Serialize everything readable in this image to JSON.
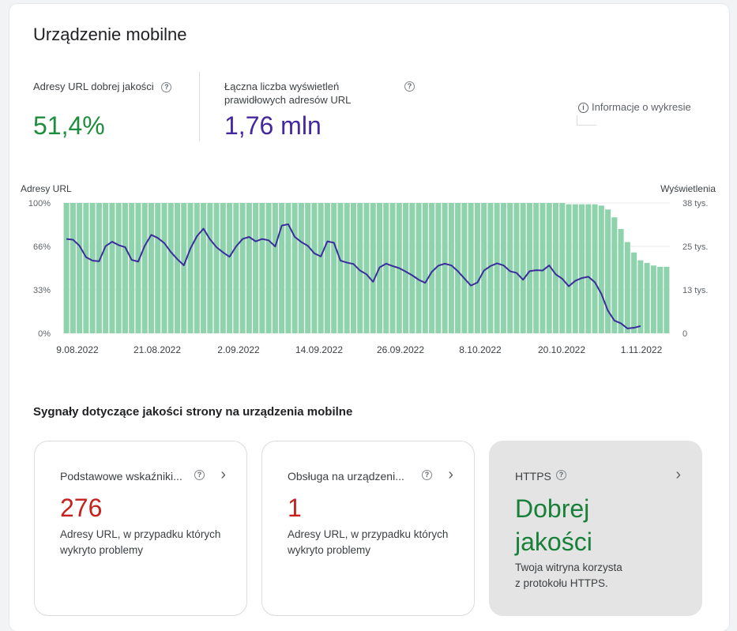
{
  "header": {
    "title": "Urządzenie mobilne",
    "info_label": "Informacje o wykresie"
  },
  "metrics": [
    {
      "label_line1": "Adresy URL dobrej jakości",
      "label_line2": "",
      "value": "51,4%",
      "color": "#1e8e3e"
    },
    {
      "label_line1": "Łączna liczba wyświetleń",
      "label_line2": "prawidłowych adresów URL",
      "value": "1,76 mln",
      "color": "#4527a0"
    }
  ],
  "chart_data": {
    "type": "bar+line",
    "left_axis_label": "Adresy URL",
    "right_axis_label": "Wyświetlenia",
    "left_ticks": [
      "100%",
      "66%",
      "33%",
      "0%"
    ],
    "right_ticks": [
      "38 tys.",
      "25 tys.",
      "13 tys.",
      "0"
    ],
    "x_labels": [
      "9.08.2022",
      "21.08.2022",
      "2.09.2022",
      "14.09.2022",
      "26.09.2022",
      "8.10.2022",
      "20.10.2022",
      "1.11.2022"
    ],
    "bar_series_name": "Adresy URL dobrej jakości",
    "bar_color": "#8fd3ad",
    "line_color": "#3c2d9e",
    "ylim_left": [
      0,
      100
    ],
    "ylim_right": [
      0,
      38000
    ],
    "bars": [
      100,
      100,
      100,
      100,
      100,
      100,
      100,
      100,
      100,
      100,
      100,
      100,
      100,
      100,
      100,
      100,
      100,
      100,
      100,
      100,
      100,
      100,
      100,
      100,
      100,
      100,
      100,
      100,
      100,
      100,
      100,
      100,
      100,
      100,
      100,
      100,
      100,
      100,
      100,
      100,
      100,
      100,
      100,
      100,
      100,
      100,
      100,
      100,
      100,
      100,
      100,
      100,
      100,
      100,
      100,
      100,
      100,
      100,
      100,
      100,
      100,
      100,
      100,
      100,
      100,
      100,
      100,
      100,
      100,
      100,
      100,
      100,
      100,
      100,
      100,
      100,
      100,
      99,
      99,
      99,
      99,
      99,
      98,
      95,
      89,
      80,
      70,
      62,
      56,
      54,
      52,
      51,
      51
    ],
    "line": [
      27500,
      27300,
      25500,
      22200,
      21200,
      21000,
      25400,
      26700,
      25700,
      25100,
      21400,
      20900,
      25500,
      28700,
      27800,
      26300,
      23700,
      21600,
      19800,
      24700,
      28300,
      30500,
      27400,
      25100,
      23600,
      22300,
      25300,
      27500,
      28100,
      26800,
      27500,
      27100,
      25300,
      31400,
      31800,
      28100,
      26600,
      25500,
      23300,
      22400,
      26800,
      26400,
      21200,
      20600,
      20200,
      18300,
      17200,
      15000,
      19200,
      20300,
      19600,
      19000,
      18000,
      16900,
      15600,
      14700,
      17900,
      19700,
      20300,
      19800,
      18100,
      16000,
      13900,
      14800,
      18300,
      19600,
      20400,
      19800,
      18100,
      17600,
      15600,
      18100,
      18400,
      18300,
      19800,
      17200,
      15900,
      13700,
      15300,
      16100,
      16500,
      14900,
      11500,
      6600,
      3700,
      2900,
      1400,
      1600,
      2100
    ]
  },
  "signals": {
    "title": "Sygnały dotyczące jakości strony na urządzenia mobilne",
    "cards": [
      {
        "label": "Podstawowe wskaźniki...",
        "value": "276",
        "desc_line1": "Adresy URL, w przypadku których",
        "desc_line2": "wykryto problemy"
      },
      {
        "label": "Obsługa na urządzeni...",
        "value": "1",
        "desc_line1": "Adresy URL, w przypadku których",
        "desc_line2": "wykryto problemy"
      },
      {
        "label": "HTTPS",
        "value_line1": "Dobrej",
        "value_line2": "jakości",
        "desc_line1": "Twoja witryna korzysta",
        "desc_line2": "z protokołu HTTPS."
      }
    ]
  }
}
